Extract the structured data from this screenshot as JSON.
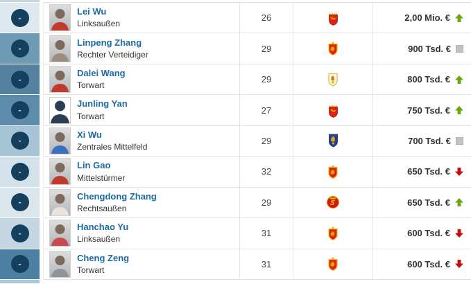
{
  "list": {
    "remove_button_label": "-",
    "top_partial_band_color": "#c9d5dd",
    "bottom_partial_band_color": "#aac7d8",
    "players": [
      {
        "name": "Lei Wu",
        "position": "Linksaußen",
        "age": "26",
        "value": "2,00 Mio. €",
        "trend": "up",
        "club_icon": "club-crest-red-crown",
        "band_color": "#dde9ef",
        "photo": "photo",
        "jersey": "#c03a2e"
      },
      {
        "name": "Linpeng Zhang",
        "position": "Rechter Verteidiger",
        "age": "29",
        "value": "900 Tsd. €",
        "trend": "same",
        "club_icon": "club-crest-red-gold",
        "band_color": "#6f9ab3",
        "photo": "photo",
        "jersey": "#9b8d80"
      },
      {
        "name": "Dalei Wang",
        "position": "Torwart",
        "age": "29",
        "value": "800 Tsd. €",
        "trend": "up",
        "club_icon": "club-crest-white-orange",
        "band_color": "#54829f",
        "photo": "photo",
        "jersey": "#c03a2e"
      },
      {
        "name": "Junling Yan",
        "position": "Torwart",
        "age": "27",
        "value": "750 Tsd. €",
        "trend": "up",
        "club_icon": "club-crest-red-crown",
        "band_color": "#5d8bab",
        "photo": "silhouette",
        "jersey": "#2c3e53"
      },
      {
        "name": "Xi Wu",
        "position": "Zentrales Mittelfeld",
        "age": "29",
        "value": "700 Tsd. €",
        "trend": "same",
        "club_icon": "club-crest-blue-gold",
        "band_color": "#a8c4d7",
        "photo": "photo",
        "jersey": "#3d6fc0"
      },
      {
        "name": "Lin Gao",
        "position": "Mittelstürmer",
        "age": "32",
        "value": "650 Tsd. €",
        "trend": "down",
        "club_icon": "club-crest-red-gold",
        "band_color": "#d3e1ea",
        "photo": "photo",
        "jersey": "#c03a2e"
      },
      {
        "name": "Chengdong Zhang",
        "position": "Rechtsaußen",
        "age": "29",
        "value": "650 Tsd. €",
        "trend": "up",
        "club_icon": "club-crest-red-round",
        "band_color": "#dae5ec",
        "photo": "photo",
        "jersey": "#e8e3de"
      },
      {
        "name": "Hanchao Yu",
        "position": "Linksaußen",
        "age": "31",
        "value": "600 Tsd. €",
        "trend": "down",
        "club_icon": "club-crest-red-gold",
        "band_color": "#c3d6e2",
        "photo": "photo",
        "jersey": "#c84a50"
      },
      {
        "name": "Cheng Zeng",
        "position": "Torwart",
        "age": "31",
        "value": "600 Tsd. €",
        "trend": "down",
        "club_icon": "club-crest-red-gold",
        "band_color": "#4c80a2",
        "photo": "photo",
        "jersey": "#8f959b"
      }
    ]
  },
  "colors": {
    "trend_up": "#6ba50e",
    "trend_down": "#c20e0e",
    "trend_same": "#c2c2c2",
    "name_link": "#1c6ba3",
    "remove_button": "#14405e"
  }
}
